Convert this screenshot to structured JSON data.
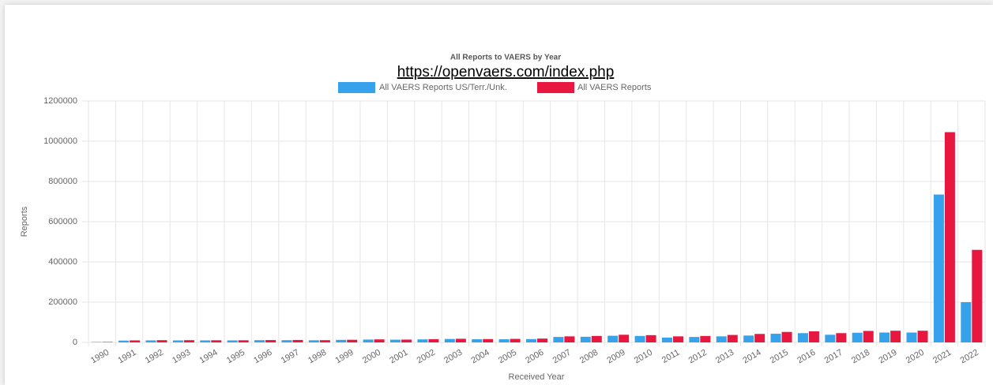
{
  "chart_data": {
    "type": "bar",
    "title": "All Reports to VAERS by Year",
    "annotation": "https://openvaers.com/index.php",
    "xlabel": "Received Year",
    "ylabel": "Reports",
    "categories": [
      "1990",
      "1991",
      "1992",
      "1993",
      "1994",
      "1995",
      "1996",
      "1997",
      "1998",
      "1999",
      "2000",
      "2001",
      "2002",
      "2003",
      "2004",
      "2005",
      "2006",
      "2007",
      "2008",
      "2009",
      "2010",
      "2011",
      "2012",
      "2013",
      "2014",
      "2015",
      "2016",
      "2017",
      "2018",
      "2019",
      "2020",
      "2021",
      "2022"
    ],
    "series": [
      {
        "name": "All VAERS Reports US/Terr./Unk.",
        "color": "#36a2eb",
        "values": [
          2100,
          9000,
          10000,
          10000,
          10000,
          10000,
          11000,
          11000,
          10500,
          12500,
          14000,
          13500,
          15000,
          17000,
          15500,
          15500,
          16500,
          27000,
          28000,
          33000,
          32000,
          24000,
          27000,
          30000,
          34000,
          43000,
          46000,
          38000,
          48000,
          49000,
          49000,
          735000,
          200000
        ]
      },
      {
        "name": "All VAERS Reports",
        "color": "#e8173f",
        "values": [
          2100,
          10000,
          11000,
          11000,
          10500,
          10500,
          11500,
          12000,
          11000,
          13000,
          15000,
          14000,
          16000,
          18000,
          16500,
          17500,
          19000,
          30000,
          32000,
          38000,
          36000,
          30000,
          32000,
          37000,
          42000,
          52000,
          55000,
          46000,
          57000,
          58000,
          58000,
          1045000,
          460000
        ]
      }
    ],
    "ylim": [
      0,
      1200000
    ],
    "yticks": [
      0,
      200000,
      400000,
      600000,
      800000,
      1000000,
      1200000
    ],
    "grid": true,
    "legend": "top"
  }
}
